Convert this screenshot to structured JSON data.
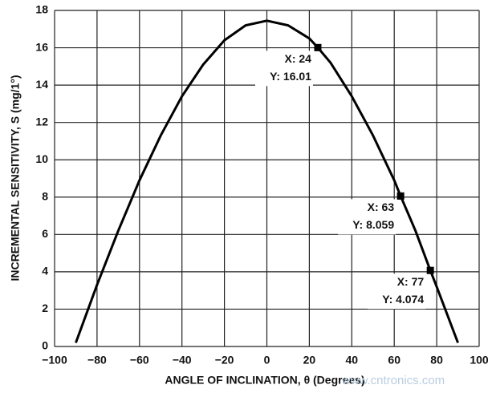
{
  "chart_data": {
    "type": "line",
    "xlabel": "ANGLE OF INCLINATION, θ (Degrees)",
    "ylabel": "INCREMENTAL SENSITIVITY, S (mg/1°)",
    "watermark": "www.cntronics.com",
    "x": [
      -90,
      -80,
      -70,
      -60,
      -50,
      -40,
      -30,
      -20,
      -10,
      0,
      10,
      20,
      24,
      30,
      40,
      50,
      60,
      63,
      70,
      77,
      80,
      90
    ],
    "series": [
      {
        "name": "S",
        "color": "#000000",
        "values": [
          0.2,
          3.3,
          6.2,
          8.9,
          11.3,
          13.4,
          15.1,
          16.4,
          17.2,
          17.45,
          17.2,
          16.5,
          16.01,
          15.2,
          13.4,
          11.3,
          8.9,
          8.059,
          6.2,
          4.074,
          3.2,
          0.2
        ]
      }
    ],
    "annotations": [
      {
        "x": 24,
        "y": 16.01,
        "x_label": "X: 24",
        "y_label": "Y: 16.01"
      },
      {
        "x": 63,
        "y": 8.059,
        "x_label": "X: 63",
        "y_label": "Y: 8.059"
      },
      {
        "x": 77,
        "y": 4.074,
        "x_label": "X: 77",
        "y_label": "Y: 4.074"
      }
    ],
    "xlim": [
      -100,
      100
    ],
    "xticks": [
      {
        "value": -100,
        "label": "−100"
      },
      {
        "value": -80,
        "label": "−80"
      },
      {
        "value": -60,
        "label": "−60"
      },
      {
        "value": -40,
        "label": "−40"
      },
      {
        "value": -20,
        "label": "−20"
      },
      0,
      20,
      40,
      60,
      80,
      100
    ],
    "ylim": [
      0,
      18
    ],
    "yticks": [
      0,
      2,
      4,
      6,
      8,
      10,
      12,
      14,
      16,
      18
    ],
    "grid": true
  }
}
